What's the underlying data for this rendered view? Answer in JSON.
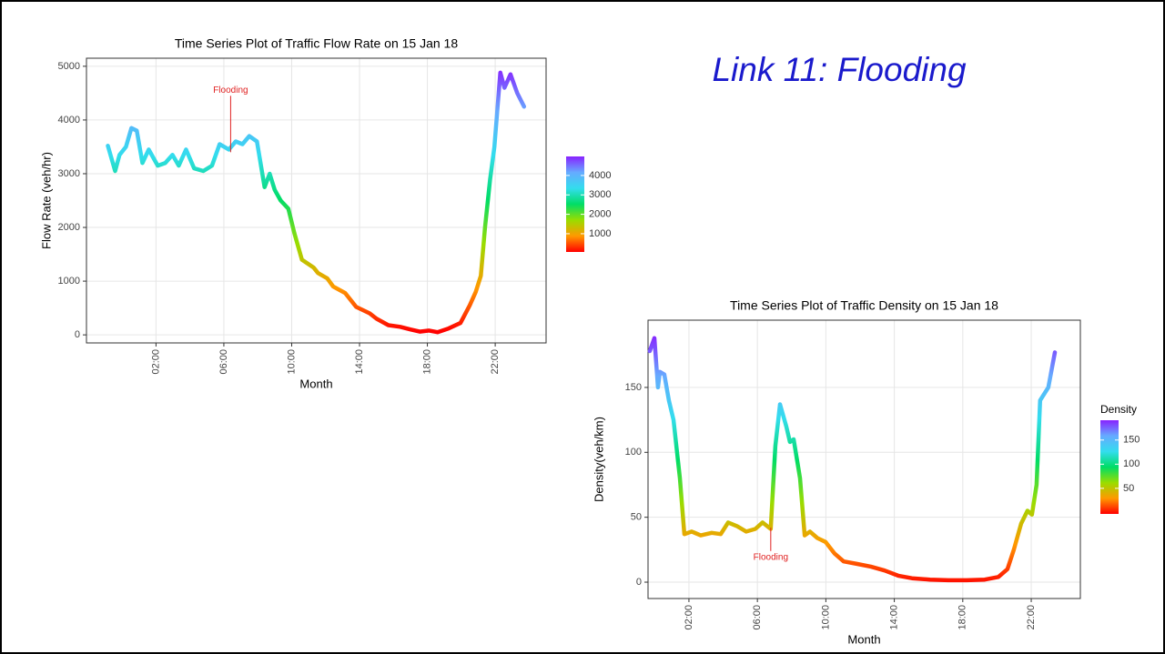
{
  "slide_title": "Link 11: Flooding",
  "chart_data": [
    {
      "type": "line",
      "title": "Time Series Plot of Traffic Flow Rate on 15 Jan 18",
      "x_label": "Month",
      "y_label": "Flow Rate (veh/hr)",
      "x": [
        -0.84,
        -0.41,
        -0.15,
        0.23,
        0.55,
        0.87,
        1.2,
        1.57,
        2.1,
        2.54,
        2.97,
        3.34,
        3.77,
        4.25,
        4.79,
        5.3,
        5.75,
        6.3,
        6.7,
        7.1,
        7.5,
        7.95,
        8.4,
        8.7,
        9.0,
        9.35,
        9.8,
        10.15,
        10.6,
        11.3,
        11.55,
        12.1,
        12.45,
        13.15,
        13.8,
        14.6,
        15.0,
        15.7,
        16.4,
        17.0,
        17.55,
        18.1,
        18.6,
        19.25,
        19.95,
        20.5,
        20.85,
        21.15,
        21.4,
        21.7,
        21.95,
        22.3,
        22.55,
        22.9,
        23.3,
        23.7
      ],
      "values": [
        3520,
        3050,
        3350,
        3500,
        3850,
        3800,
        3200,
        3450,
        3150,
        3200,
        3350,
        3150,
        3450,
        3100,
        3050,
        3150,
        3550,
        3450,
        3600,
        3550,
        3700,
        3600,
        2750,
        3000,
        2700,
        2500,
        2350,
        1900,
        1400,
        1250,
        1150,
        1050,
        900,
        780,
        520,
        400,
        300,
        180,
        150,
        100,
        60,
        80,
        50,
        120,
        220,
        550,
        800,
        1100,
        2000,
        2900,
        3500,
        4880,
        4600,
        4850,
        4500,
        4250
      ],
      "xlim": [
        -2.1,
        25
      ],
      "ylim": [
        -150,
        5150
      ],
      "xticks": [
        {
          "value": 2,
          "label": "02:00"
        },
        {
          "value": 6,
          "label": "06:00"
        },
        {
          "value": 10,
          "label": "10:00"
        },
        {
          "value": 14,
          "label": "14:00"
        },
        {
          "value": 18,
          "label": "18:00"
        },
        {
          "value": 22,
          "label": "22:00"
        }
      ],
      "yticks": [
        0,
        1000,
        2000,
        3000,
        4000,
        5000
      ],
      "grid": true,
      "colorscale": [
        "#ff0000",
        "#ff9900",
        "#99dd00",
        "#00dd66",
        "#33ddee",
        "#66aaff",
        "#8822ff"
      ],
      "color_range": [
        60,
        4980
      ],
      "colorbar_ticks": [
        1000,
        2000,
        3000,
        4000
      ],
      "annotation": {
        "text": "Flooding",
        "x": 6.4,
        "y": 4450,
        "y_end": 3400,
        "color": "#e02020"
      }
    },
    {
      "type": "line",
      "title": "Time Series Plot of Traffic Density on 15 Jan 18",
      "x_label": "Month",
      "y_label": "Density(veh/km)",
      "colorbar_title": "Density",
      "x": [
        -0.29,
        -0.02,
        0.19,
        0.3,
        0.56,
        0.83,
        1.1,
        1.47,
        1.73,
        2.16,
        2.69,
        3.33,
        3.86,
        4.29,
        4.82,
        5.35,
        5.88,
        6.3,
        6.78,
        7.05,
        7.32,
        7.69,
        7.9,
        8.12,
        8.49,
        8.76,
        9.07,
        9.5,
        9.98,
        10.51,
        11.04,
        11.84,
        12.63,
        13.43,
        14.23,
        15.03,
        16.09,
        17.16,
        18.22,
        19.28,
        20.08,
        20.61,
        20.98,
        21.41,
        21.78,
        22.04,
        22.31,
        22.52,
        23.0,
        23.38
      ],
      "values": [
        178,
        188,
        150,
        162,
        160,
        140,
        125,
        80,
        37,
        39,
        36,
        38,
        37,
        46,
        43,
        39,
        41,
        46,
        41,
        105,
        137,
        120,
        108,
        110,
        80,
        36,
        39,
        34,
        31,
        22,
        16,
        14,
        12,
        9,
        5,
        3,
        2,
        1.5,
        1.5,
        2,
        4,
        10,
        25,
        45,
        55,
        52,
        75,
        140,
        150,
        177
      ],
      "xlim": [
        -0.39,
        24.87
      ],
      "ylim": [
        -12.6,
        201.8
      ],
      "xticks": [
        {
          "value": 2,
          "label": "02:00"
        },
        {
          "value": 6,
          "label": "06:00"
        },
        {
          "value": 10,
          "label": "10:00"
        },
        {
          "value": 14,
          "label": "14:00"
        },
        {
          "value": 18,
          "label": "18:00"
        },
        {
          "value": 22,
          "label": "22:00"
        }
      ],
      "yticks": [
        0,
        50,
        100,
        150
      ],
      "grid": true,
      "colorscale": [
        "#ff0000",
        "#ff9900",
        "#99dd00",
        "#00dd66",
        "#33ddee",
        "#66aaff",
        "#8822ff"
      ],
      "color_range": [
        -3,
        191
      ],
      "colorbar_ticks": [
        50,
        100,
        150
      ],
      "annotation": {
        "text": "Flooding",
        "x": 6.78,
        "y": 24,
        "y_end": 42,
        "color": "#e02020"
      }
    }
  ]
}
